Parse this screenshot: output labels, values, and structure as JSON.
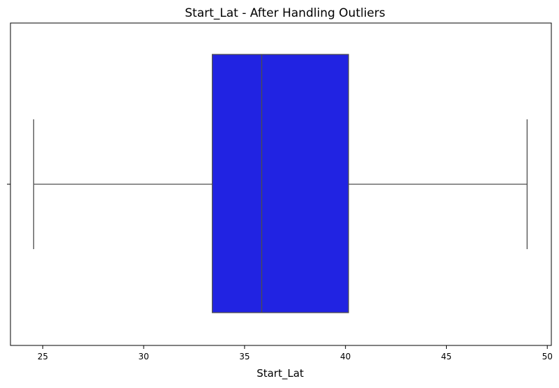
{
  "chart_data": {
    "type": "boxplot",
    "title": "Start_Lat - After Handling Outliers",
    "xlabel": "Start_Lat",
    "ylabel": "",
    "orientation": "horizontal",
    "xlim": [
      23.4,
      50.2
    ],
    "xticks": [
      25,
      30,
      35,
      40,
      45,
      50
    ],
    "xtick_labels": [
      "25",
      "30",
      "35",
      "40",
      "45",
      "50"
    ],
    "box": {
      "whisker_low": 24.55,
      "q1": 33.4,
      "median": 35.85,
      "q3": 40.15,
      "whisker_high": 49.0
    },
    "colors": {
      "box_fill": "#2123e2",
      "lines": "#4d4d4d",
      "axes": "#000000"
    },
    "grid": false
  }
}
